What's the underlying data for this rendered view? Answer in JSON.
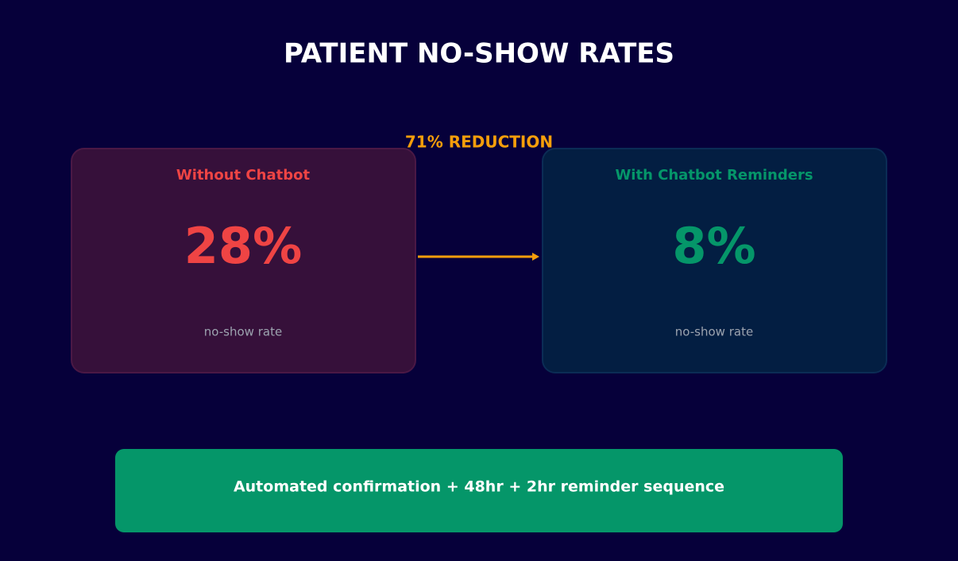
{
  "title": "PATIENT NO-SHOW RATES",
  "reduction": "71% REDUCTION",
  "cards": [
    {
      "heading": "Without Chatbot",
      "value": "28%",
      "caption": "no-show rate"
    },
    {
      "heading": "With Chatbot Reminders",
      "value": "8%",
      "caption": "no-show rate"
    }
  ],
  "footer": "Automated confirmation + 48hr + 2hr reminder sequence"
}
